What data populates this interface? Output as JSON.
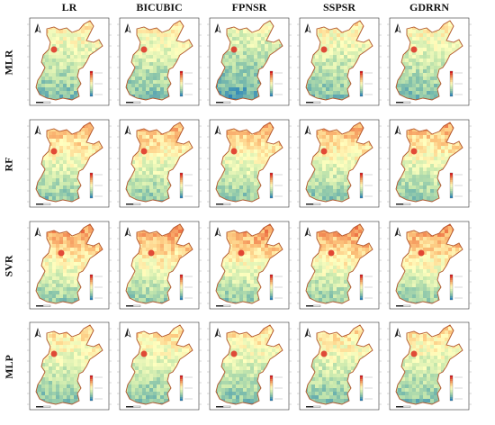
{
  "figure": {
    "columns": [
      {
        "label": "LR"
      },
      {
        "label": "BICUBIC"
      },
      {
        "label": "FPNSR"
      },
      {
        "label": "SSPSR"
      },
      {
        "label": "GDRRN"
      }
    ],
    "rows": [
      {
        "label": "MLR",
        "north_arrow": "north-arrow-icon",
        "color_tone": 0.25
      },
      {
        "label": "RF",
        "north_arrow": "north-arrow-icon",
        "color_tone": 0.55
      },
      {
        "label": "SVR",
        "north_arrow": "north-arrow-icon",
        "color_tone": 0.7
      },
      {
        "label": "MLP",
        "north_arrow": "north-arrow-icon",
        "color_tone": 0.35
      }
    ],
    "colormap": [
      "#2b83ba",
      "#80bfab",
      "#c7e8ad",
      "#ffffbf",
      "#fdc980",
      "#f07c4a",
      "#d7191c"
    ],
    "border_color": "#b2552a",
    "frame_color": "#333333"
  }
}
